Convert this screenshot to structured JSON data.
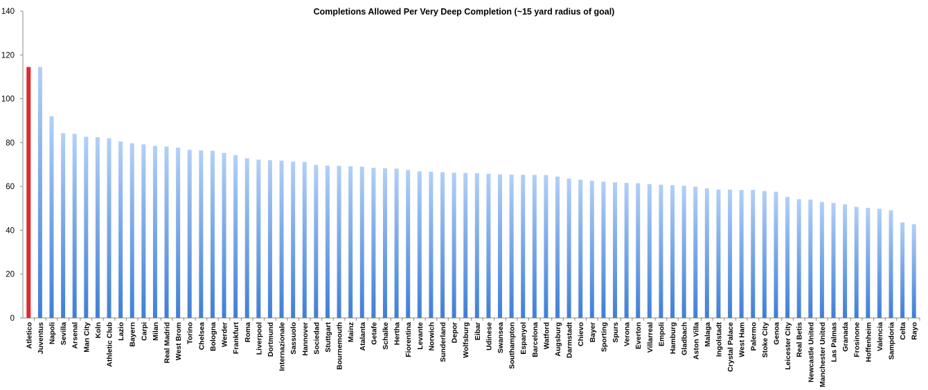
{
  "chart_data": {
    "type": "bar",
    "title": "Completions Allowed Per Very Deep Completion (~15 yard radius of goal)",
    "xlabel": "",
    "ylabel": "",
    "ylim": [
      0,
      140
    ],
    "yticks": [
      0,
      20,
      40,
      60,
      80,
      100,
      120,
      140
    ],
    "grid": false,
    "legend": "none",
    "categories": [
      "Atletico",
      "Juventus",
      "Napoli",
      "Sevilla",
      "Arsenal",
      "Man City",
      "Koln",
      "Athletic Club",
      "Lazio",
      "Bayern",
      "Carpi",
      "Milan",
      "Real Madrid",
      "West Brom",
      "Torino",
      "Chelsea",
      "Bologna",
      "Werder",
      "Frankfurt",
      "Roma",
      "Liverpool",
      "Dortmund",
      "Internazionale",
      "Sassuolo",
      "Hannover",
      "Sociedad",
      "Stuttgart",
      "Bournemouth",
      "Mainz",
      "Atalanta",
      "Getafe",
      "Schalke",
      "Hertha",
      "Fiorentina",
      "Levante",
      "Norwich",
      "Sunderland",
      "Depor",
      "Wolfsburg",
      "Eibar",
      "Udinese",
      "Swansea",
      "Southampton",
      "Espanyol",
      "Barcelona",
      "Watford",
      "Augsburg",
      "Darmstadt",
      "Chievo",
      "Bayer",
      "Sporting",
      "Spurs",
      "Verona",
      "Everton",
      "Villarreal",
      "Empoli",
      "Hamburg",
      "Gladbach",
      "Aston Villa",
      "Malaga",
      "Ingolstadt",
      "Crystal Palace",
      "West Ham",
      "Palermo",
      "Stoke City",
      "Genoa",
      "Leicester City",
      "Real Betis",
      "Newcastle United",
      "Manchester United",
      "Las Palmas",
      "Granada",
      "Frosinone",
      "Hoffenheim",
      "Valencia",
      "Sampdoria",
      "Celta",
      "Rayo"
    ],
    "values": [
      114.5,
      114.5,
      92,
      84.3,
      84,
      82.7,
      82.5,
      82,
      80.5,
      79.7,
      79.2,
      78.5,
      78.2,
      77.7,
      76.7,
      76.5,
      76.3,
      75.3,
      74.3,
      72.8,
      72.2,
      72,
      71.8,
      71.3,
      71.2,
      69.8,
      69.5,
      69.4,
      69.2,
      69,
      68.5,
      68.3,
      68.1,
      67.5,
      66.9,
      66.7,
      66.5,
      66.3,
      66.2,
      66.1,
      65.8,
      65.5,
      65.4,
      65.3,
      65.3,
      65.2,
      64.5,
      63.6,
      63.1,
      62.6,
      62.2,
      61.9,
      61.6,
      61.5,
      61.1,
      60.8,
      60.6,
      60.3,
      59.9,
      59.1,
      58.6,
      58.5,
      58.4,
      58.4,
      57.9,
      57.6,
      55.2,
      54.2,
      54,
      52.9,
      52.5,
      51.8,
      50.7,
      50.2,
      49.8,
      49.1,
      43.6,
      42.8
    ],
    "colors": {
      "highlight": "#e02b2b",
      "bar_top": "#b3d0f7",
      "bar_bottom": "#3f7fd6",
      "axis": "#888888"
    },
    "highlight_categories": [
      "Atletico"
    ]
  }
}
